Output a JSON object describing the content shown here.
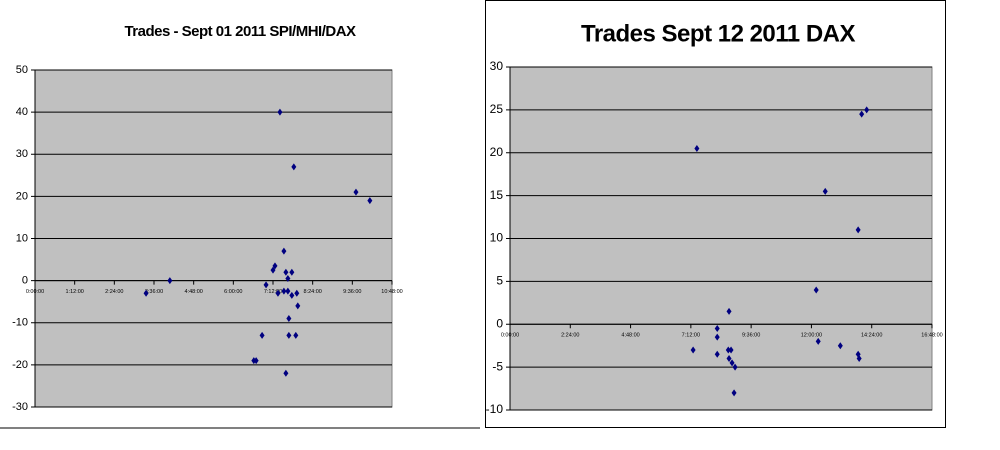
{
  "chart_data": [
    {
      "type": "scatter",
      "title": "Trades - Sept 01 2011 SPI/MHI/DAX",
      "x": [
        3.36,
        4.08,
        7.41,
        7.83,
        9.71,
        10.13,
        7.53,
        7.26,
        7.2,
        7.59,
        7.77,
        7.65,
        6.99,
        7.53,
        7.65,
        7.35,
        7.77,
        7.92,
        7.95,
        7.68,
        6.87,
        7.68,
        7.89,
        6.62,
        6.69,
        7.59
      ],
      "values": [
        -3,
        0,
        40,
        27,
        21,
        19,
        7,
        3.5,
        2.5,
        2,
        2,
        0.5,
        -1,
        -2.5,
        -2.5,
        -3,
        -3.5,
        -3,
        -6,
        -9,
        -13,
        -13,
        -13,
        -19,
        -19,
        -22
      ],
      "color": "#000080",
      "xlim": [
        0,
        10.8
      ],
      "xticks": [
        {
          "value": 0,
          "label": "0:00:00"
        },
        {
          "value": 1.2,
          "label": "1:12:00"
        },
        {
          "value": 2.4,
          "label": "2:24:00"
        },
        {
          "value": 3.6,
          "label": "3:36:00"
        },
        {
          "value": 4.8,
          "label": "4:48:00"
        },
        {
          "value": 6,
          "label": "6:00:00"
        },
        {
          "value": 7.2,
          "label": "7:12:00"
        },
        {
          "value": 8.4,
          "label": "8:24:00"
        },
        {
          "value": 9.6,
          "label": "9:36:00"
        },
        {
          "value": 10.8,
          "label": "10:48:00"
        }
      ],
      "ylim": [
        -30,
        50
      ],
      "yticks": [
        -30,
        -20,
        -10,
        0,
        10,
        20,
        30,
        40,
        50
      ],
      "grid": true
    },
    {
      "type": "scatter",
      "title": "Trades Sept 12 2011 DAX",
      "x": [
        7.44,
        14.0,
        14.2,
        12.55,
        13.86,
        12.19,
        12.27,
        13.15,
        13.86,
        13.9,
        8.72,
        8.25,
        8.25,
        7.29,
        8.25,
        8.69,
        8.8,
        8.72,
        8.84,
        8.96,
        8.92
      ],
      "values": [
        20.5,
        24.5,
        25,
        15.5,
        11,
        4,
        -2,
        -2.5,
        -3.5,
        -4,
        1.5,
        -0.5,
        -1.5,
        -3,
        -3.5,
        -3,
        -3,
        -4,
        -4.5,
        -5,
        -8
      ],
      "color": "#000080",
      "xlim": [
        0,
        16.8
      ],
      "xticks": [
        {
          "value": 0,
          "label": "0:00:00"
        },
        {
          "value": 2.4,
          "label": "2:24:00"
        },
        {
          "value": 4.8,
          "label": "4:48:00"
        },
        {
          "value": 7.2,
          "label": "7:12:00"
        },
        {
          "value": 9.6,
          "label": "9:36:00"
        },
        {
          "value": 12,
          "label": "12:00:00"
        },
        {
          "value": 14.4,
          "label": "14:24:00"
        },
        {
          "value": 16.8,
          "label": "16:48:00"
        }
      ],
      "ylim": [
        -10,
        30
      ],
      "yticks": [
        -10,
        -5,
        0,
        5,
        10,
        15,
        20,
        25,
        30
      ],
      "grid": true
    }
  ]
}
